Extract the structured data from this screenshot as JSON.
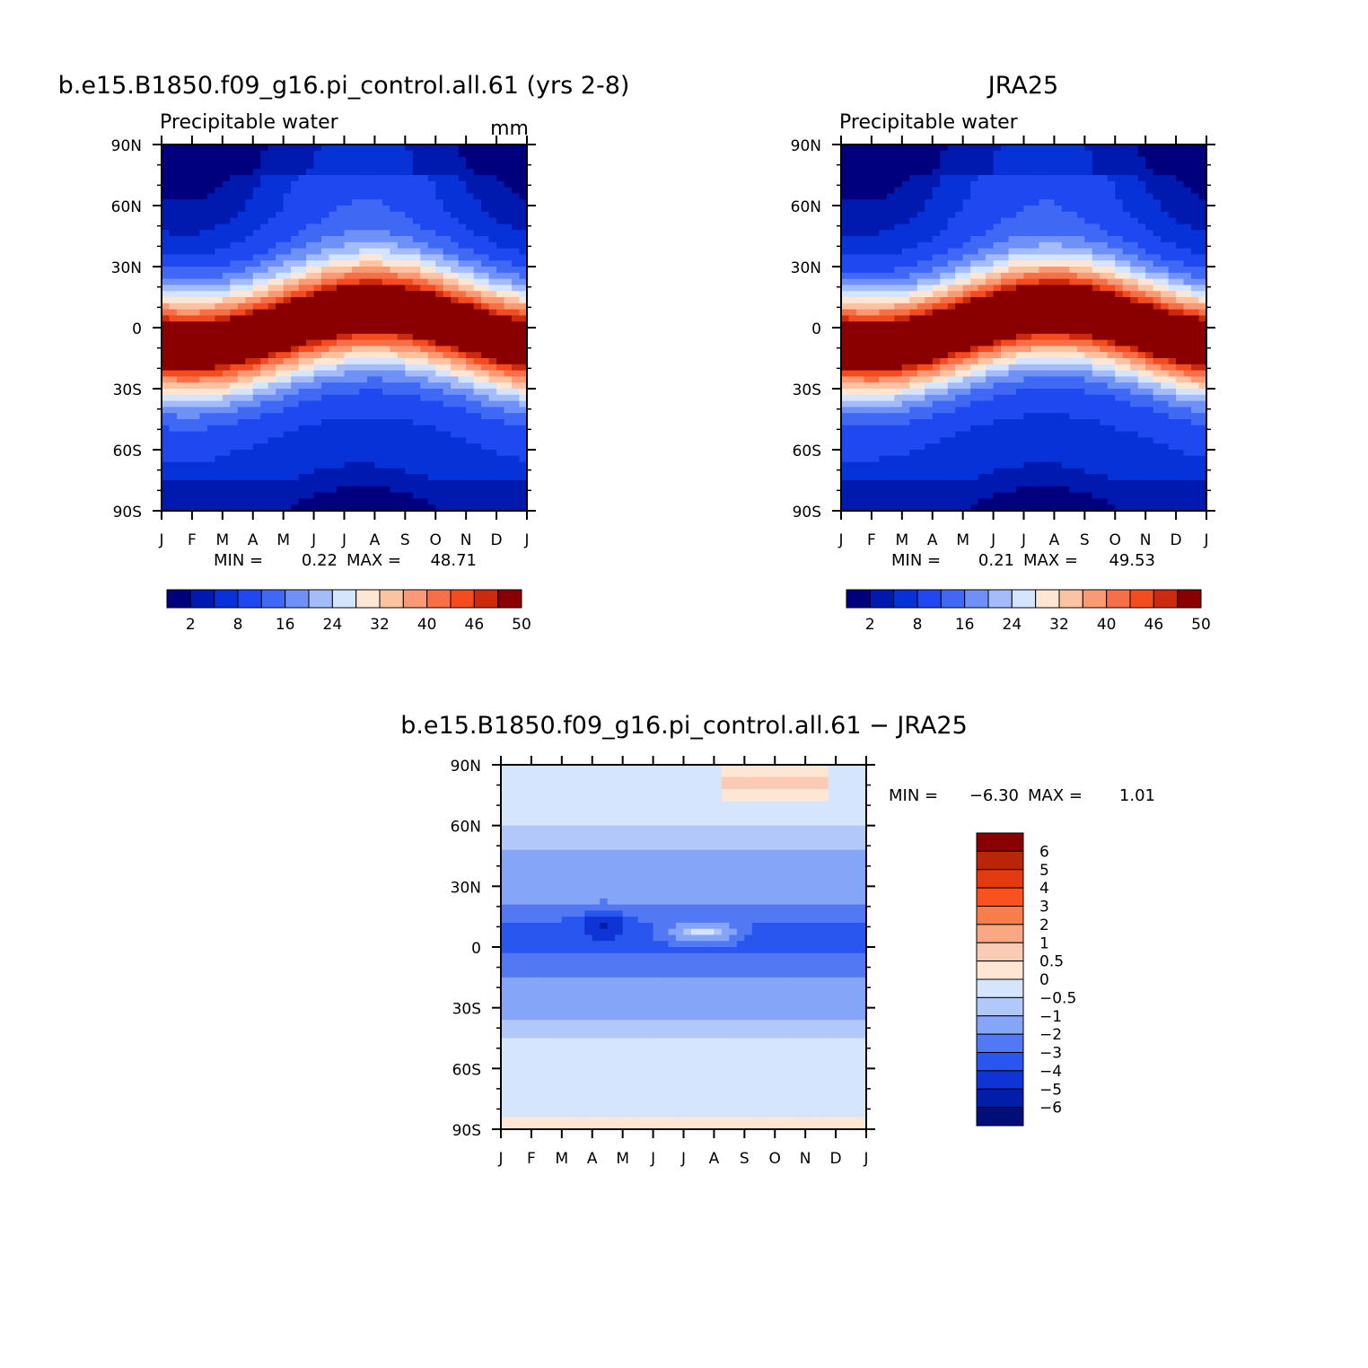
{
  "chart_data": [
    {
      "type": "heatmap",
      "title": "b.e15.B1850.f09_g16.pi_control.all.61 (yrs 2-8)",
      "subtitle_left": "Precipitable water",
      "subtitle_right": "mm",
      "x_ticks": [
        "J",
        "F",
        "M",
        "A",
        "M",
        "J",
        "J",
        "A",
        "S",
        "O",
        "N",
        "D",
        "J"
      ],
      "y_ticks": [
        "90N",
        "60N",
        "30N",
        "0",
        "30S",
        "60S",
        "90S"
      ],
      "min_label": "MIN =",
      "min_value": "0.22",
      "max_label": "MAX =",
      "max_value": "48.71",
      "zlim": [
        0.22,
        48.71
      ],
      "colorbar_labels": [
        "2",
        "8",
        "16",
        "24",
        "32",
        "40",
        "46",
        "50"
      ]
    },
    {
      "type": "heatmap",
      "title": "JRA25",
      "subtitle_left": "Precipitable water",
      "x_ticks": [
        "J",
        "F",
        "M",
        "A",
        "M",
        "J",
        "J",
        "A",
        "S",
        "O",
        "N",
        "D",
        "J"
      ],
      "y_ticks": [
        "90N",
        "60N",
        "30N",
        "0",
        "30S",
        "60S",
        "90S"
      ],
      "min_label": "MIN =",
      "min_value": "0.21",
      "max_label": "MAX =",
      "max_value": "49.53",
      "zlim": [
        0.21,
        49.53
      ],
      "colorbar_labels": [
        "2",
        "8",
        "16",
        "24",
        "32",
        "40",
        "46",
        "50"
      ]
    },
    {
      "type": "heatmap",
      "title": "b.e15.B1850.f09_g16.pi_control.all.61 − JRA25",
      "x_ticks": [
        "J",
        "F",
        "M",
        "A",
        "M",
        "J",
        "J",
        "A",
        "S",
        "O",
        "N",
        "D",
        "J"
      ],
      "y_ticks": [
        "90N",
        "60N",
        "30N",
        "0",
        "30S",
        "60S",
        "90S"
      ],
      "min_label": "MIN =",
      "min_value": "−6.30",
      "max_label": "MAX =",
      "max_value": "1.01",
      "zlim": [
        -6.3,
        1.01
      ],
      "colorbar_labels": [
        "6",
        "5",
        "4",
        "3",
        "2",
        "1",
        "0.5",
        "0",
        "−0.5",
        "−1",
        "−2",
        "−3",
        "−4",
        "−5",
        "−6"
      ]
    }
  ],
  "colors": {
    "seq_palette": [
      "#00007f",
      "#001ab0",
      "#0732d8",
      "#1f48f0",
      "#3f68f4",
      "#6e91f8",
      "#a5bcfb",
      "#d4e5fd",
      "#fee6d4",
      "#fcc3a3",
      "#f99a74",
      "#f76f46",
      "#f44b1f",
      "#cc2a0c",
      "#8a0000"
    ],
    "div_palette": [
      "#8a0000",
      "#b82508",
      "#e33a12",
      "#f9521e",
      "#f97c4a",
      "#f9a883",
      "#fccbb5",
      "#fee6d4",
      "#d4e5fd",
      "#b2c8fb",
      "#85a5f8",
      "#5278f4",
      "#2a56f0",
      "#0f33d4",
      "#001ea8",
      "#000e7a"
    ]
  }
}
